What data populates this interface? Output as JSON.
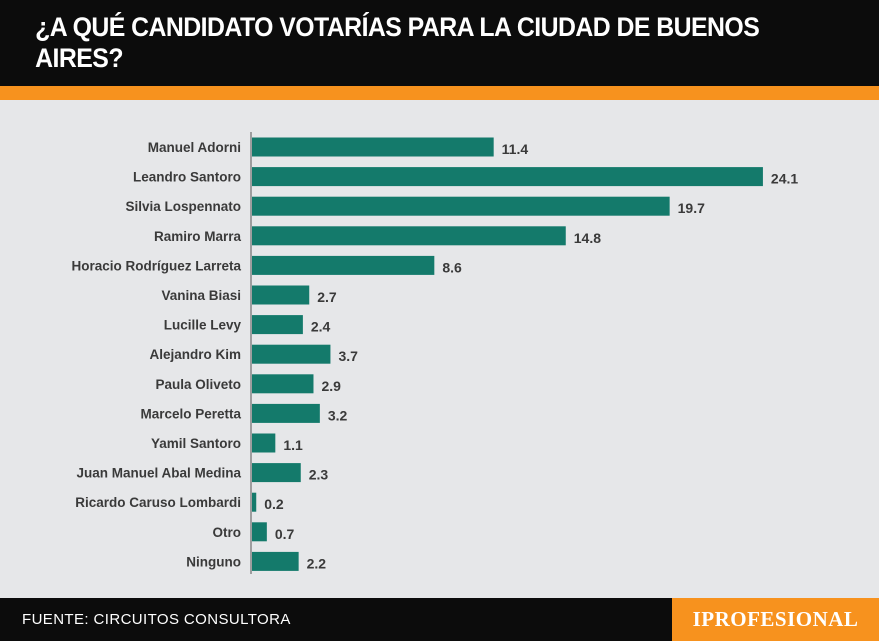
{
  "title": "¿A QUÉ CANDIDATO VOTARÍAS PARA LA CIUDAD DE BUENOS AIRES?",
  "footer": {
    "source": "FUENTE: CIRCUITOS CONSULTORA",
    "brand": "IPROFESIONAL"
  },
  "colors": {
    "accent": "#f7921e",
    "bar": "#147a6b",
    "background": "#e6e7e9",
    "header": "#0c0c0c"
  },
  "chart_data": {
    "type": "bar",
    "orientation": "horizontal",
    "title": "¿A QUÉ CANDIDATO VOTARÍAS PARA LA CIUDAD DE BUENOS AIRES?",
    "xlabel": "",
    "ylabel": "",
    "xlim": [
      0,
      25
    ],
    "grid": false,
    "legend": "none",
    "categories": [
      "Manuel Adorni",
      "Leandro Santoro",
      "Silvia Lospennato",
      "Ramiro Marra",
      "Horacio Rodríguez Larreta",
      "Vanina Biasi",
      "Lucille Levy",
      "Alejandro Kim",
      "Paula Oliveto",
      "Marcelo Peretta",
      "Yamil Santoro",
      "Juan Manuel Abal Medina",
      "Ricardo Caruso Lombardi",
      "Otro",
      "Ninguno"
    ],
    "values": [
      11.4,
      24.1,
      19.7,
      14.8,
      8.6,
      2.7,
      2.4,
      3.7,
      2.9,
      3.2,
      1.1,
      2.3,
      0.2,
      0.7,
      2.2
    ]
  }
}
